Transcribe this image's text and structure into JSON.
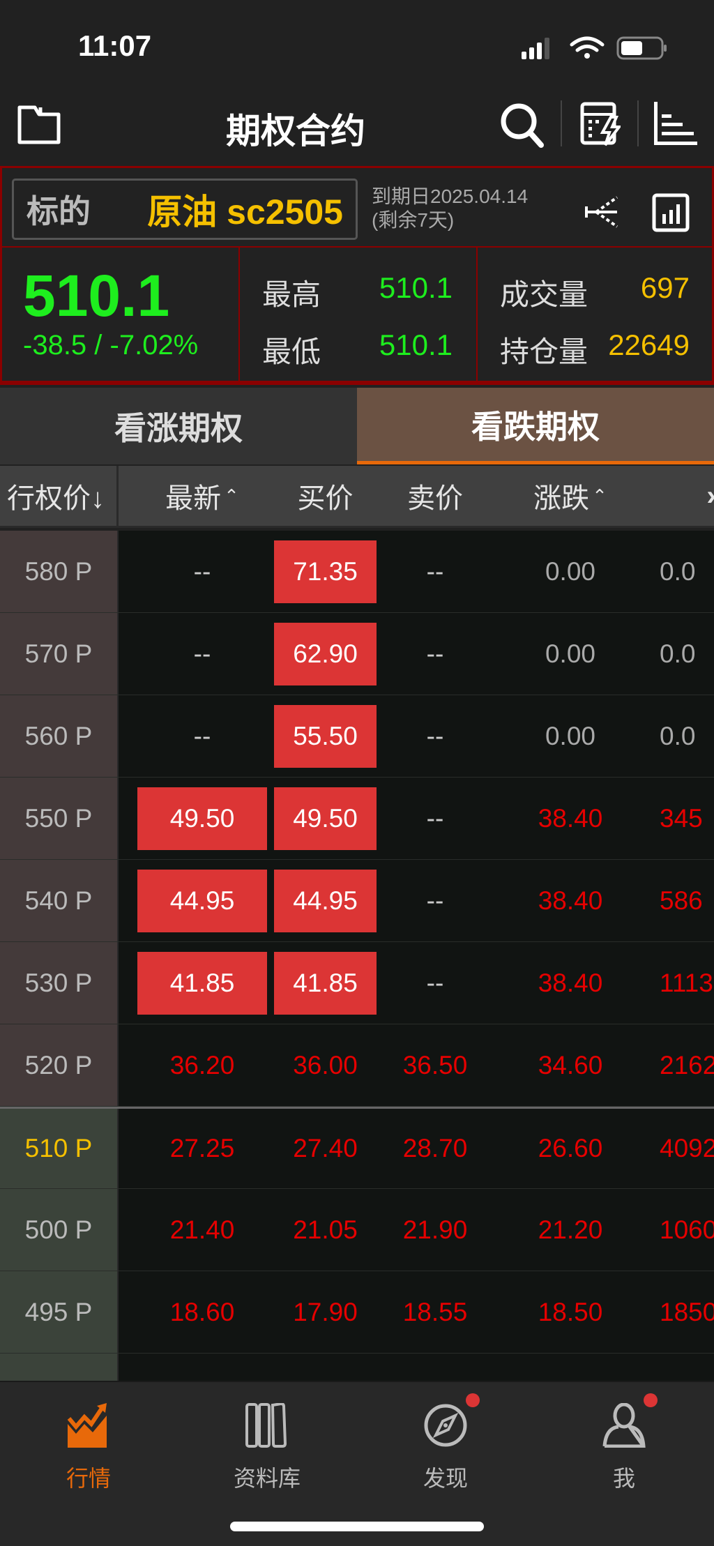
{
  "status_bar": {
    "time": "11:07"
  },
  "nav": {
    "title": "期权合约",
    "icons": [
      "folder-icon",
      "search-icon",
      "calculator-icon",
      "list-sort-icon"
    ]
  },
  "underlying": {
    "label": "标的",
    "name": "原油 sc2505",
    "expiry": "到期日2025.04.14",
    "remaining": "(剩余7天)",
    "last": "510.1",
    "change": "-38.5 / -7.02%",
    "high_label": "最高",
    "high": "510.1",
    "low_label": "最低",
    "low": "510.1",
    "volume_label": "成交量",
    "volume": "697",
    "oi_label": "持仓量",
    "oi": "22649"
  },
  "tabs": [
    {
      "label": "看涨期权",
      "active": false
    },
    {
      "label": "看跌期权",
      "active": true
    }
  ],
  "columns": [
    "行权价↓",
    "最新",
    "买价",
    "卖价",
    "涨跌"
  ],
  "colors": {
    "up": "#e60000",
    "down": "#1eee1e",
    "accent": "#e8690a",
    "highlight_box": "#dc3535",
    "yellow": "#f5c000"
  },
  "rows": [
    {
      "strike": "580 P",
      "last": "--",
      "bid": "71.35",
      "ask": "--",
      "change": "0.00",
      "extra": "0.0",
      "bid_hl": true,
      "last_hl": false,
      "tone": "flat"
    },
    {
      "strike": "570 P",
      "last": "--",
      "bid": "62.90",
      "ask": "--",
      "change": "0.00",
      "extra": "0.0",
      "bid_hl": true,
      "last_hl": false,
      "tone": "flat"
    },
    {
      "strike": "560 P",
      "last": "--",
      "bid": "55.50",
      "ask": "--",
      "change": "0.00",
      "extra": "0.0",
      "bid_hl": true,
      "last_hl": false,
      "tone": "flat"
    },
    {
      "strike": "550 P",
      "last": "49.50",
      "bid": "49.50",
      "ask": "--",
      "change": "38.40",
      "extra": "345",
      "bid_hl": true,
      "last_hl": true,
      "tone": "up"
    },
    {
      "strike": "540 P",
      "last": "44.95",
      "bid": "44.95",
      "ask": "--",
      "change": "38.40",
      "extra": "586",
      "bid_hl": true,
      "last_hl": true,
      "tone": "up"
    },
    {
      "strike": "530 P",
      "last": "41.85",
      "bid": "41.85",
      "ask": "--",
      "change": "38.40",
      "extra": "1113",
      "bid_hl": true,
      "last_hl": true,
      "tone": "up"
    },
    {
      "strike": "520 P",
      "last": "36.20",
      "bid": "36.00",
      "ask": "36.50",
      "change": "34.60",
      "extra": "2162",
      "bid_hl": false,
      "last_hl": false,
      "tone": "up"
    },
    {
      "strike": "510 P",
      "last": "27.25",
      "bid": "27.40",
      "ask": "28.70",
      "change": "26.60",
      "extra": "4092",
      "bid_hl": false,
      "last_hl": false,
      "tone": "up",
      "atm": true
    },
    {
      "strike": "500 P",
      "last": "21.40",
      "bid": "21.05",
      "ask": "21.90",
      "change": "21.20",
      "extra": "1060",
      "bid_hl": false,
      "last_hl": false,
      "tone": "up"
    },
    {
      "strike": "495 P",
      "last": "18.60",
      "bid": "17.90",
      "ask": "18.55",
      "change": "18.50",
      "extra": "1850",
      "bid_hl": false,
      "last_hl": false,
      "tone": "up"
    }
  ],
  "bottom_nav": [
    {
      "label": "行情",
      "active": true
    },
    {
      "label": "资料库"
    },
    {
      "label": "发现",
      "badge": true
    },
    {
      "label": "我",
      "badge": true
    }
  ]
}
